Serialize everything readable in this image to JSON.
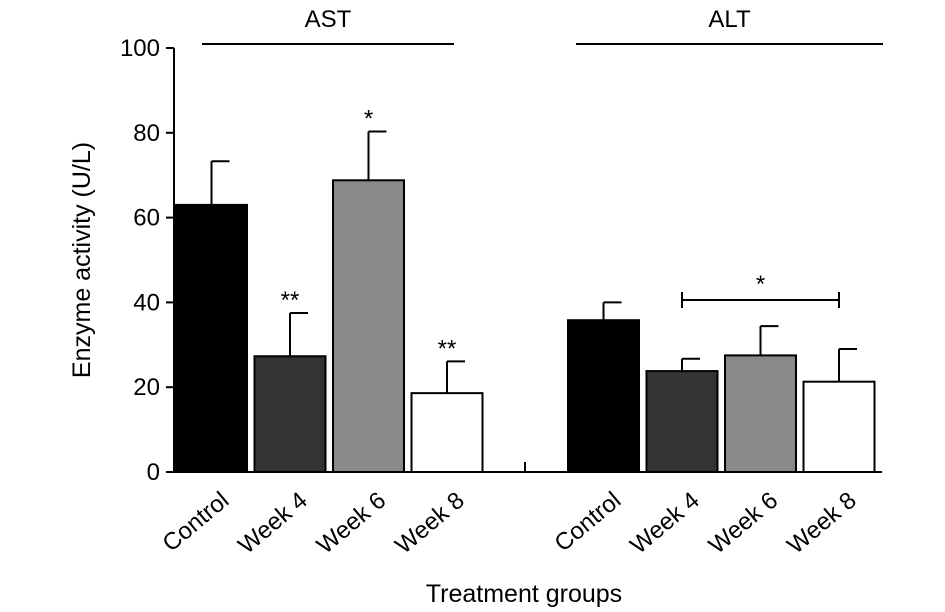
{
  "chart_data": {
    "type": "bar",
    "xlabel": "Treatment groups",
    "ylabel": "Enzyme activity (U/L)",
    "ylim": [
      0,
      100
    ],
    "yticks": [
      0,
      20,
      40,
      60,
      80,
      100
    ],
    "grid": false,
    "groups": [
      {
        "name": "AST",
        "categories": [
          "Control",
          "Week 4",
          "Week 6",
          "Week 8"
        ],
        "values": [
          63,
          27.3,
          68.8,
          18.6
        ],
        "errors": [
          10.3,
          10.2,
          11.5,
          7.5
        ],
        "colors": [
          "#000000",
          "#333333",
          "#898989",
          "#ffffff"
        ],
        "significance": [
          "",
          "**",
          "*",
          "**"
        ]
      },
      {
        "name": "ALT",
        "categories": [
          "Control",
          "Week 4",
          "Week 6",
          "Week 8"
        ],
        "values": [
          35.8,
          23.8,
          27.5,
          21.3
        ],
        "errors": [
          4.2,
          2.9,
          6.9,
          7.7
        ],
        "colors": [
          "#000000",
          "#333333",
          "#898989",
          "#ffffff"
        ],
        "significance": [
          "",
          "",
          "",
          ""
        ],
        "bracket": {
          "from": "Week 4",
          "to": "Week 8",
          "label": "*"
        }
      }
    ]
  }
}
